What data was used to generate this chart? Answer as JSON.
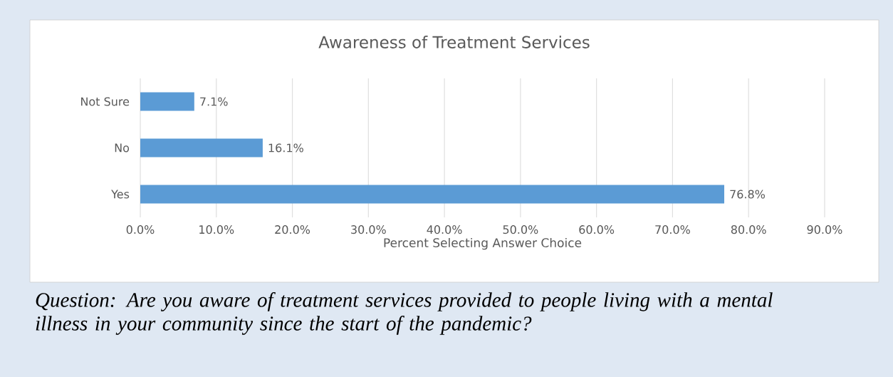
{
  "chart_data": {
    "type": "bar",
    "orientation": "horizontal",
    "title": "Awareness of Treatment Services",
    "xlabel": "Percent Selecting Answer Choice",
    "categories": [
      "Not Sure",
      "No",
      "Yes"
    ],
    "values": [
      7.1,
      16.1,
      76.8
    ],
    "value_labels": [
      "7.1%",
      "16.1%",
      "76.8%"
    ],
    "color": "#5b9bd5",
    "xlim": [
      0,
      90
    ],
    "xticks": [
      {
        "value": 0,
        "label": "0.0%"
      },
      {
        "value": 10,
        "label": "10.0%"
      },
      {
        "value": 20,
        "label": "20.0%"
      },
      {
        "value": 30,
        "label": "30.0%"
      },
      {
        "value": 40,
        "label": "40.0%"
      },
      {
        "value": 50,
        "label": "50.0%"
      },
      {
        "value": 60,
        "label": "60.0%"
      },
      {
        "value": 70,
        "label": "70.0%"
      },
      {
        "value": 80,
        "label": "80.0%"
      },
      {
        "value": 90,
        "label": "90.0%"
      }
    ],
    "grid": "x",
    "annotations": [
      "*Question: Are you aware of treatment services provided to people living with a mental illness in your community since the start of the pandemic?*"
    ]
  }
}
